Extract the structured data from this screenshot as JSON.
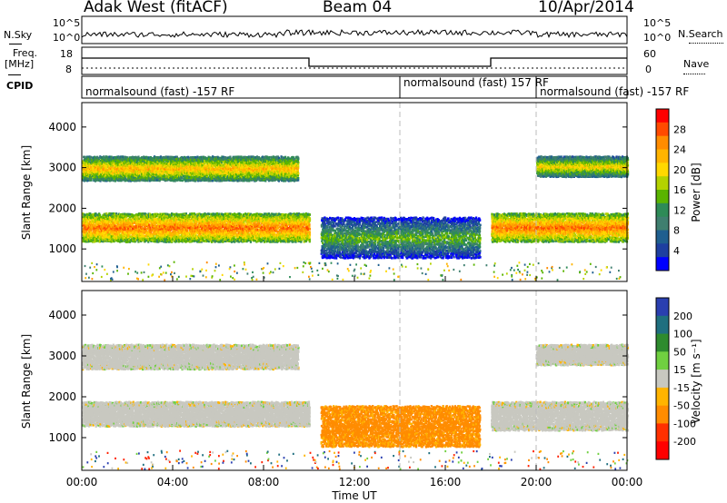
{
  "header": {
    "radar": "Adak West (fitACF)",
    "beam": "Beam 04",
    "date": "10/Apr/2014"
  },
  "aux_panels": {
    "nsky_label": "N.Sky",
    "nsearch_label": "N.Search",
    "freq_label_1": "Freq.",
    "freq_label_2": "[MHz]",
    "nave_label": "Nave",
    "cpid_label": "CPID",
    "nsky_ticks": [
      "10^5",
      "10^0"
    ],
    "nsearch_ticks": [
      "10^5",
      "10^0"
    ],
    "freq_ticks": [
      "18",
      "8"
    ],
    "nave_ticks": [
      "60",
      "0"
    ],
    "cpid_segments": [
      {
        "text": "normalsound (fast) -157 RF",
        "start_hour": 0
      },
      {
        "text": "normalsound (fast) 157 RF",
        "start_hour": 14
      },
      {
        "text": "normalsound (fast) -157 RF",
        "start_hour": 20
      }
    ]
  },
  "colorbars": {
    "power": {
      "label": "Power [dB]",
      "ticks": [
        "28",
        "24",
        "20",
        "16",
        "12",
        "8",
        "4"
      ],
      "colors": [
        "#ff0000",
        "#ff4a00",
        "#ff8c00",
        "#ffb400",
        "#ffd800",
        "#b4d200",
        "#5ab400",
        "#2e8b57",
        "#3f7f6f",
        "#1f5f8f",
        "#1e3fa0",
        "#0000ff"
      ]
    },
    "velocity": {
      "label": "Velocity [m s⁻¹]",
      "ticks": [
        "200",
        "100",
        "50",
        "15",
        "-15",
        "-50",
        "-100",
        "-200"
      ],
      "colors": [
        "#2a3fb0",
        "#1f6f7f",
        "#2e8b2e",
        "#70d040",
        "#c8c8c0",
        "#ffb400",
        "#ff8c00",
        "#ff3000",
        "#ff0000"
      ]
    }
  },
  "axes": {
    "ylabel": "Slant Range [km]",
    "xlabel": "Time UT",
    "yticks": [
      "4000",
      "3000",
      "2000",
      "1000"
    ],
    "xticks": [
      "00:00",
      "04:00",
      "08:00",
      "12:00",
      "16:00",
      "20:00",
      "00:00"
    ]
  },
  "chart_data": [
    {
      "type": "heatmap",
      "title": "",
      "quantity": "Power",
      "xlabel": "",
      "ylabel": "Slant Range [km]",
      "xlim_hours": [
        0,
        24
      ],
      "ylim_km": [
        200,
        4600
      ],
      "colorbar_ticks_dB": [
        4,
        8,
        12,
        16,
        20,
        24,
        28
      ],
      "regions": [
        {
          "name": "lower band morning",
          "hours": [
            0,
            10
          ],
          "range_km": [
            1200,
            1900
          ],
          "power_dB": 26
        },
        {
          "name": "upper band morning",
          "hours": [
            0,
            9.5
          ],
          "range_km": [
            2700,
            3300
          ],
          "power_dB": 22
        },
        {
          "name": "midday arc",
          "hours": [
            10.5,
            17.5
          ],
          "range_km": [
            800,
            1800
          ],
          "power_dB": 14
        },
        {
          "name": "lower band evening",
          "hours": [
            18,
            24
          ],
          "range_km": [
            1200,
            1900
          ],
          "power_dB": 26
        },
        {
          "name": "upper band evening",
          "hours": [
            20,
            24
          ],
          "range_km": [
            2800,
            3300
          ],
          "power_dB": 20
        }
      ]
    },
    {
      "type": "heatmap",
      "title": "",
      "quantity": "Velocity",
      "xlabel": "Time UT",
      "ylabel": "Slant Range [km]",
      "xlim_hours": [
        0,
        24
      ],
      "ylim_km": [
        200,
        4600
      ],
      "colorbar_ticks_ms": [
        -200,
        -100,
        -50,
        -15,
        15,
        50,
        100,
        200
      ],
      "regions": [
        {
          "name": "lower band morning",
          "hours": [
            0,
            10
          ],
          "range_km": [
            1300,
            1900
          ],
          "velocity_ms": 0
        },
        {
          "name": "upper band morning",
          "hours": [
            0,
            9.5
          ],
          "range_km": [
            2700,
            3300
          ],
          "velocity_ms": 0
        },
        {
          "name": "midday arc",
          "hours": [
            10.5,
            17.5
          ],
          "range_km": [
            800,
            1800
          ],
          "velocity_ms": -60
        },
        {
          "name": "lower band evening",
          "hours": [
            18,
            24
          ],
          "range_km": [
            1200,
            1900
          ],
          "velocity_ms": 0
        },
        {
          "name": "upper band evening",
          "hours": [
            20,
            24
          ],
          "range_km": [
            2800,
            3300
          ],
          "velocity_ms": 0
        }
      ]
    }
  ]
}
